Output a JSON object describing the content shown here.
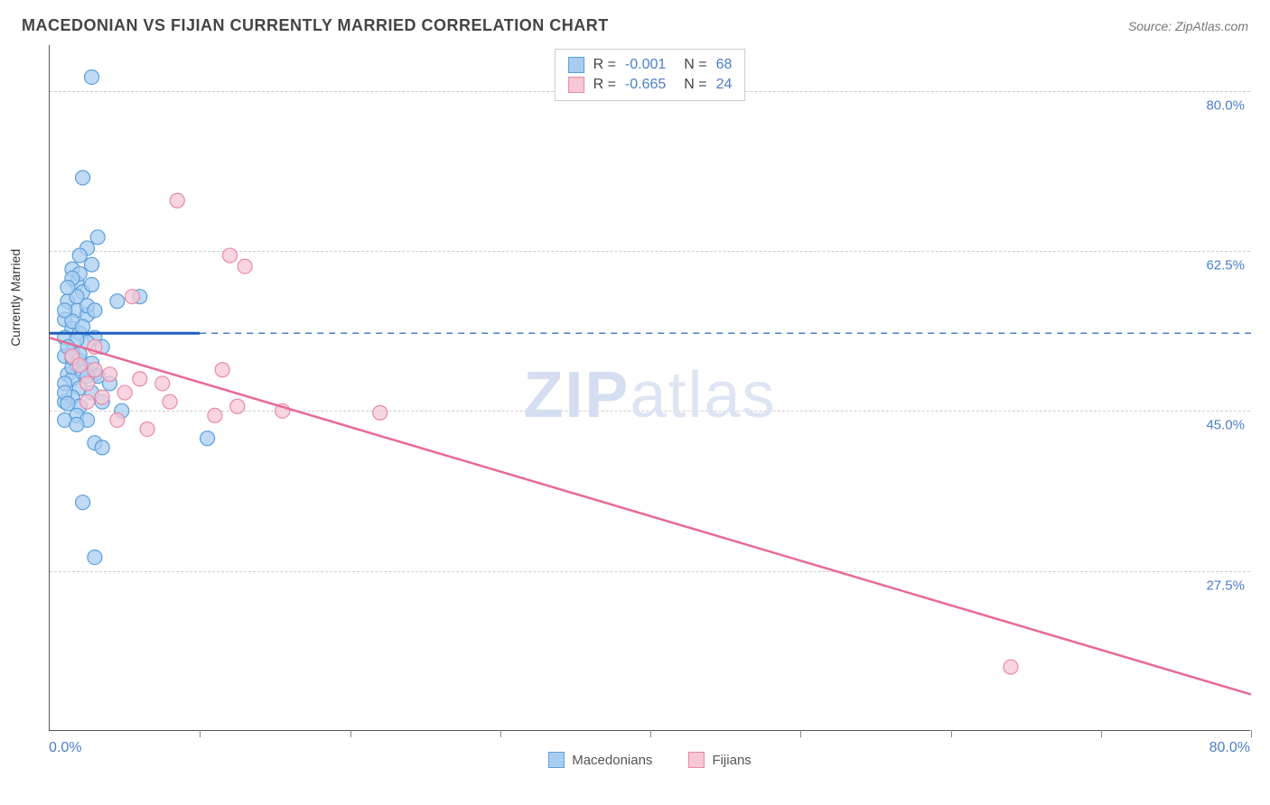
{
  "header": {
    "title": "MACEDONIAN VS FIJIAN CURRENTLY MARRIED CORRELATION CHART",
    "source_prefix": "Source: ",
    "source_name": "ZipAtlas.com"
  },
  "chart": {
    "type": "scatter",
    "ylabel": "Currently Married",
    "xlim": [
      0,
      80
    ],
    "ylim": [
      10,
      85
    ],
    "x_axis": {
      "min_label": "0.0%",
      "max_label": "80.0%"
    },
    "y_ticks": [
      {
        "value": 27.5,
        "label": "27.5%"
      },
      {
        "value": 45.0,
        "label": "45.0%"
      },
      {
        "value": 62.5,
        "label": "62.5%"
      },
      {
        "value": 80.0,
        "label": "80.0%"
      }
    ],
    "x_tick_step": 10,
    "background_color": "#ffffff",
    "grid_color": "#cccccc",
    "watermark": {
      "bold": "ZIP",
      "light": "atlas",
      "color": "#d4def0"
    },
    "series": [
      {
        "name": "Macedonians",
        "fill": "#a9cdf0",
        "stroke": "#5a9fdc",
        "marker_radius": 8,
        "marker_opacity": 0.75,
        "r_value": "-0.001",
        "n_value": "68",
        "trend": {
          "solid": {
            "x1": 0,
            "y1": 53.5,
            "x2": 10,
            "y2": 53.5,
            "color": "#1f5fbf",
            "width": 3
          },
          "dashed": {
            "x1": 10,
            "y1": 53.5,
            "x2": 80,
            "y2": 53.5,
            "color": "#4a7ec9",
            "width": 1.5
          }
        },
        "points": [
          [
            2.8,
            81.5
          ],
          [
            2.2,
            70.5
          ],
          [
            3.2,
            64.0
          ],
          [
            2.5,
            62.8
          ],
          [
            2.0,
            62.0
          ],
          [
            1.5,
            60.5
          ],
          [
            1.8,
            59.0
          ],
          [
            2.2,
            58.0
          ],
          [
            2.8,
            58.8
          ],
          [
            1.2,
            57.0
          ],
          [
            1.8,
            56.0
          ],
          [
            2.5,
            55.5
          ],
          [
            1.0,
            55.0
          ],
          [
            1.5,
            54.0
          ],
          [
            2.0,
            53.5
          ],
          [
            3.0,
            53.0
          ],
          [
            1.0,
            53.0
          ],
          [
            2.5,
            52.5
          ],
          [
            3.5,
            52.0
          ],
          [
            1.5,
            51.5
          ],
          [
            1.0,
            51.0
          ],
          [
            2.0,
            50.5
          ],
          [
            1.8,
            50.0
          ],
          [
            2.5,
            49.5
          ],
          [
            3.0,
            49.0
          ],
          [
            1.2,
            49.0
          ],
          [
            1.5,
            48.5
          ],
          [
            4.0,
            48.0
          ],
          [
            1.0,
            48.0
          ],
          [
            2.0,
            47.5
          ],
          [
            2.8,
            47.0
          ],
          [
            1.5,
            46.5
          ],
          [
            3.5,
            46.0
          ],
          [
            1.0,
            46.0
          ],
          [
            2.0,
            45.5
          ],
          [
            4.8,
            45.0
          ],
          [
            1.8,
            44.5
          ],
          [
            2.5,
            44.0
          ],
          [
            10.5,
            42.0
          ],
          [
            3.0,
            41.5
          ],
          [
            3.5,
            41.0
          ],
          [
            2.2,
            35.0
          ],
          [
            3.0,
            29.0
          ],
          [
            1.5,
            54.8
          ],
          [
            2.2,
            54.2
          ],
          [
            1.8,
            52.8
          ],
          [
            1.2,
            52.0
          ],
          [
            2.0,
            51.2
          ],
          [
            2.8,
            50.2
          ],
          [
            1.5,
            49.8
          ],
          [
            3.2,
            48.8
          ],
          [
            1.0,
            47.0
          ],
          [
            2.5,
            56.5
          ],
          [
            1.8,
            57.5
          ],
          [
            1.0,
            56.0
          ],
          [
            2.0,
            60.0
          ],
          [
            1.5,
            59.5
          ],
          [
            2.8,
            61.0
          ],
          [
            1.2,
            58.5
          ],
          [
            3.0,
            56.0
          ],
          [
            1.5,
            50.8
          ],
          [
            2.2,
            49.2
          ],
          [
            1.0,
            44.0
          ],
          [
            1.8,
            43.5
          ],
          [
            2.5,
            48.8
          ],
          [
            1.2,
            45.8
          ],
          [
            4.5,
            57.0
          ],
          [
            6.0,
            57.5
          ]
        ]
      },
      {
        "name": "Fijians",
        "fill": "#f6c7d5",
        "stroke": "#e889a8",
        "marker_radius": 8,
        "marker_opacity": 0.75,
        "r_value": "-0.665",
        "n_value": "24",
        "trend": {
          "solid": {
            "x1": 0,
            "y1": 53.0,
            "x2": 80,
            "y2": 14.0,
            "color": "#e86a94",
            "width": 2.5
          }
        },
        "points": [
          [
            8.5,
            68.0
          ],
          [
            12.0,
            62.0
          ],
          [
            13.0,
            60.8
          ],
          [
            5.5,
            57.5
          ],
          [
            3.0,
            52.0
          ],
          [
            11.5,
            49.5
          ],
          [
            4.0,
            49.0
          ],
          [
            6.0,
            48.5
          ],
          [
            2.5,
            48.0
          ],
          [
            7.5,
            48.0
          ],
          [
            5.0,
            47.0
          ],
          [
            3.5,
            46.5
          ],
          [
            8.0,
            46.0
          ],
          [
            12.5,
            45.5
          ],
          [
            15.5,
            45.0
          ],
          [
            4.5,
            44.0
          ],
          [
            6.5,
            43.0
          ],
          [
            22.0,
            44.8
          ],
          [
            1.5,
            51.0
          ],
          [
            2.0,
            50.0
          ],
          [
            3.0,
            49.5
          ],
          [
            2.5,
            46.0
          ],
          [
            64.0,
            17.0
          ],
          [
            11.0,
            44.5
          ]
        ]
      }
    ],
    "bottom_legend": [
      {
        "label": "Macedonians",
        "fill": "#a9cdf0",
        "stroke": "#5a9fdc"
      },
      {
        "label": "Fijians",
        "fill": "#f6c7d5",
        "stroke": "#e889a8"
      }
    ]
  }
}
